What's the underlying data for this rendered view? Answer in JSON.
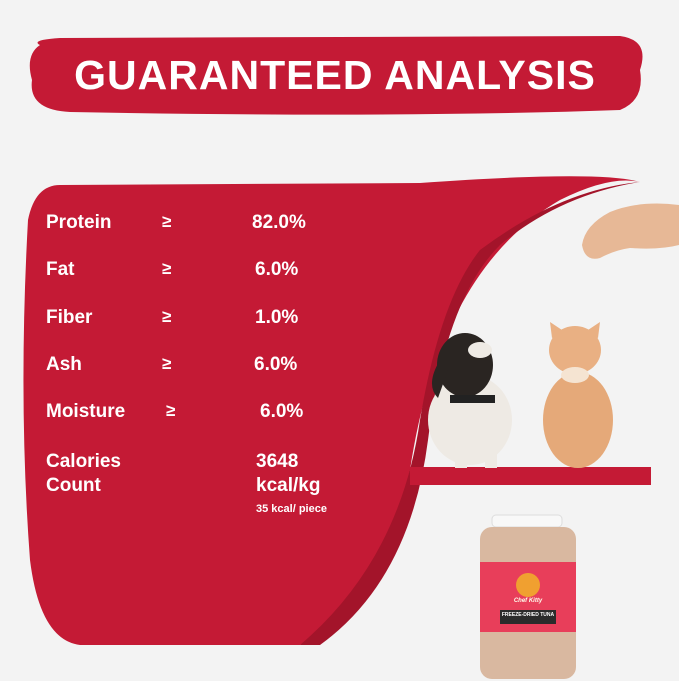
{
  "title": "GUARANTEED ANALYSIS",
  "colors": {
    "accent": "#c41a35",
    "accent_dark": "#a3142a",
    "background": "#f3f3f3"
  },
  "analysis": [
    {
      "label": "Protein",
      "operator": "≥",
      "value": "82.0%"
    },
    {
      "label": "Fat",
      "operator": "≥",
      "value": "6.0%"
    },
    {
      "label": "Fiber",
      "operator": "≥",
      "value": "1.0%"
    },
    {
      "label": "Ash",
      "operator": "≥",
      "value": "6.0%"
    },
    {
      "label": "Moisture",
      "operator": "≥",
      "value": "6.0%"
    }
  ],
  "calories": {
    "label_line1": "Calories",
    "label_line2": "Count",
    "value_line1": "3648",
    "value_line2": "kcal/kg",
    "per_piece": "35 kcal/ piece"
  },
  "product": {
    "brand": "Chef Kitty",
    "name": "FREEZE-DRIED TUNA"
  }
}
